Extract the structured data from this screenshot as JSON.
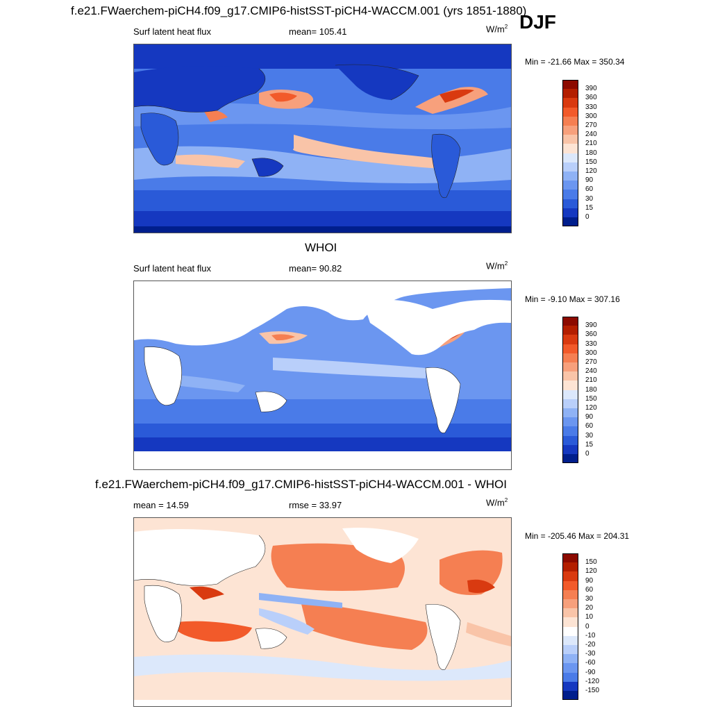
{
  "season": "DJF",
  "panels": [
    {
      "title": "f.e21.FWaerchem-piCH4.f09_g17.CMIP6-histSST-piCH4-WACCM.001 (yrs 1851-1880)",
      "left_label": "Surf latent heat flux",
      "center_label": "mean= 105.41",
      "unit_base": "W/m",
      "unit_exp": "2",
      "minmax": "Min = -21.66 Max = 350.34",
      "levels": [
        "390",
        "360",
        "330",
        "300",
        "270",
        "240",
        "210",
        "180",
        "150",
        "120",
        "90",
        "60",
        "30",
        "15",
        "0"
      ],
      "colors": [
        "#8c0a00",
        "#b31e00",
        "#d93a10",
        "#f25a2a",
        "#f57f52",
        "#f7a07c",
        "#f9c4a8",
        "#fde4d4",
        "#dce8fb",
        "#b9cffa",
        "#8fb2f5",
        "#6b96f0",
        "#4a7be8",
        "#2a5ad8",
        "#1538c0",
        "#001e8c"
      ]
    },
    {
      "title": "WHOI",
      "left_label": "Surf latent heat flux",
      "center_label": "mean=  90.82",
      "unit_base": "W/m",
      "unit_exp": "2",
      "minmax": "Min =  -9.10 Max = 307.16",
      "levels": [
        "390",
        "360",
        "330",
        "300",
        "270",
        "240",
        "210",
        "180",
        "150",
        "120",
        "90",
        "60",
        "30",
        "15",
        "0"
      ],
      "colors": [
        "#8c0a00",
        "#b31e00",
        "#d93a10",
        "#f25a2a",
        "#f57f52",
        "#f7a07c",
        "#f9c4a8",
        "#fde4d4",
        "#dce8fb",
        "#b9cffa",
        "#8fb2f5",
        "#6b96f0",
        "#4a7be8",
        "#2a5ad8",
        "#1538c0",
        "#001e8c"
      ]
    },
    {
      "title": "f.e21.FWaerchem-piCH4.f09_g17.CMIP6-histSST-piCH4-WACCM.001 - WHOI",
      "left_label": "mean =  14.59",
      "center_label": "rmse =  33.97",
      "unit_base": "W/m",
      "unit_exp": "2",
      "minmax": "Min = -205.46 Max = 204.31",
      "levels": [
        "150",
        "120",
        "90",
        "60",
        "30",
        "20",
        "10",
        "0",
        "-10",
        "-20",
        "-30",
        "-60",
        "-90",
        "-120",
        "-150"
      ],
      "colors": [
        "#8c0a00",
        "#b31e00",
        "#d93a10",
        "#f25a2a",
        "#f57f52",
        "#f7a07c",
        "#f9c4a8",
        "#fde4d4",
        "#ffffff",
        "#dce8fb",
        "#b9cffa",
        "#8fb2f5",
        "#6b96f0",
        "#4a7be8",
        "#1538c0",
        "#001e8c"
      ]
    }
  ]
}
